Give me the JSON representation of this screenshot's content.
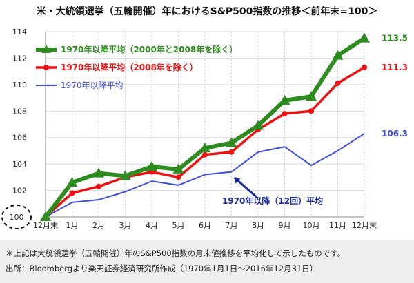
{
  "title": "米・大統領選挙（五輪開催）年におけるS&P500指数の推移＜前年末=100＞",
  "chart_data": {
    "type": "line",
    "title": "米・大統領選挙（五輪開催）年におけるS&P500指数の推移＜前年末=100＞",
    "x": [
      "12月末",
      "1月",
      "2月",
      "3月",
      "4月",
      "5月",
      "6月",
      "7月",
      "8月",
      "9月",
      "10月",
      "11月",
      "12月末"
    ],
    "ylim": [
      100,
      114
    ],
    "yticks": [
      100,
      102,
      104,
      106,
      108,
      110,
      112,
      114
    ],
    "grid": true,
    "legend_position": "top-left",
    "series": [
      {
        "name": "1970年以降平均（2000年と2008年を除く）",
        "color": "#2e8b1f",
        "marker": "triangle",
        "values": [
          100,
          102.6,
          103.3,
          103.1,
          103.8,
          103.6,
          105.2,
          105.6,
          106.9,
          108.8,
          109.1,
          112.2,
          113.5
        ],
        "end_label": "113.5"
      },
      {
        "name": "1970年以降平均（2008年を除く）",
        "color": "#ee1111",
        "marker": "circle",
        "values": [
          100,
          101.8,
          102.3,
          103.0,
          103.4,
          103.0,
          104.7,
          104.9,
          106.6,
          107.8,
          108.0,
          110.1,
          111.3
        ],
        "end_label": "111.3"
      },
      {
        "name": "1970年以降平均",
        "color": "#3f4fd8",
        "marker": "none",
        "values": [
          100,
          101.1,
          101.3,
          101.9,
          102.7,
          102.4,
          103.2,
          103.4,
          104.9,
          105.3,
          103.9,
          105.0,
          106.3
        ],
        "end_label": "106.3"
      }
    ],
    "annotations": {
      "callout": "1970年以降（12回）平均",
      "start_label": "100"
    }
  },
  "notes": {
    "note1": "＊上記は大統領選挙（五輪開催）年のS&P500指数の月末値推移を平均化して示したものです。",
    "source": "出所：Bloombergより楽天証券経済研究所作成（1970年1月1日～2016年12月31日）"
  }
}
